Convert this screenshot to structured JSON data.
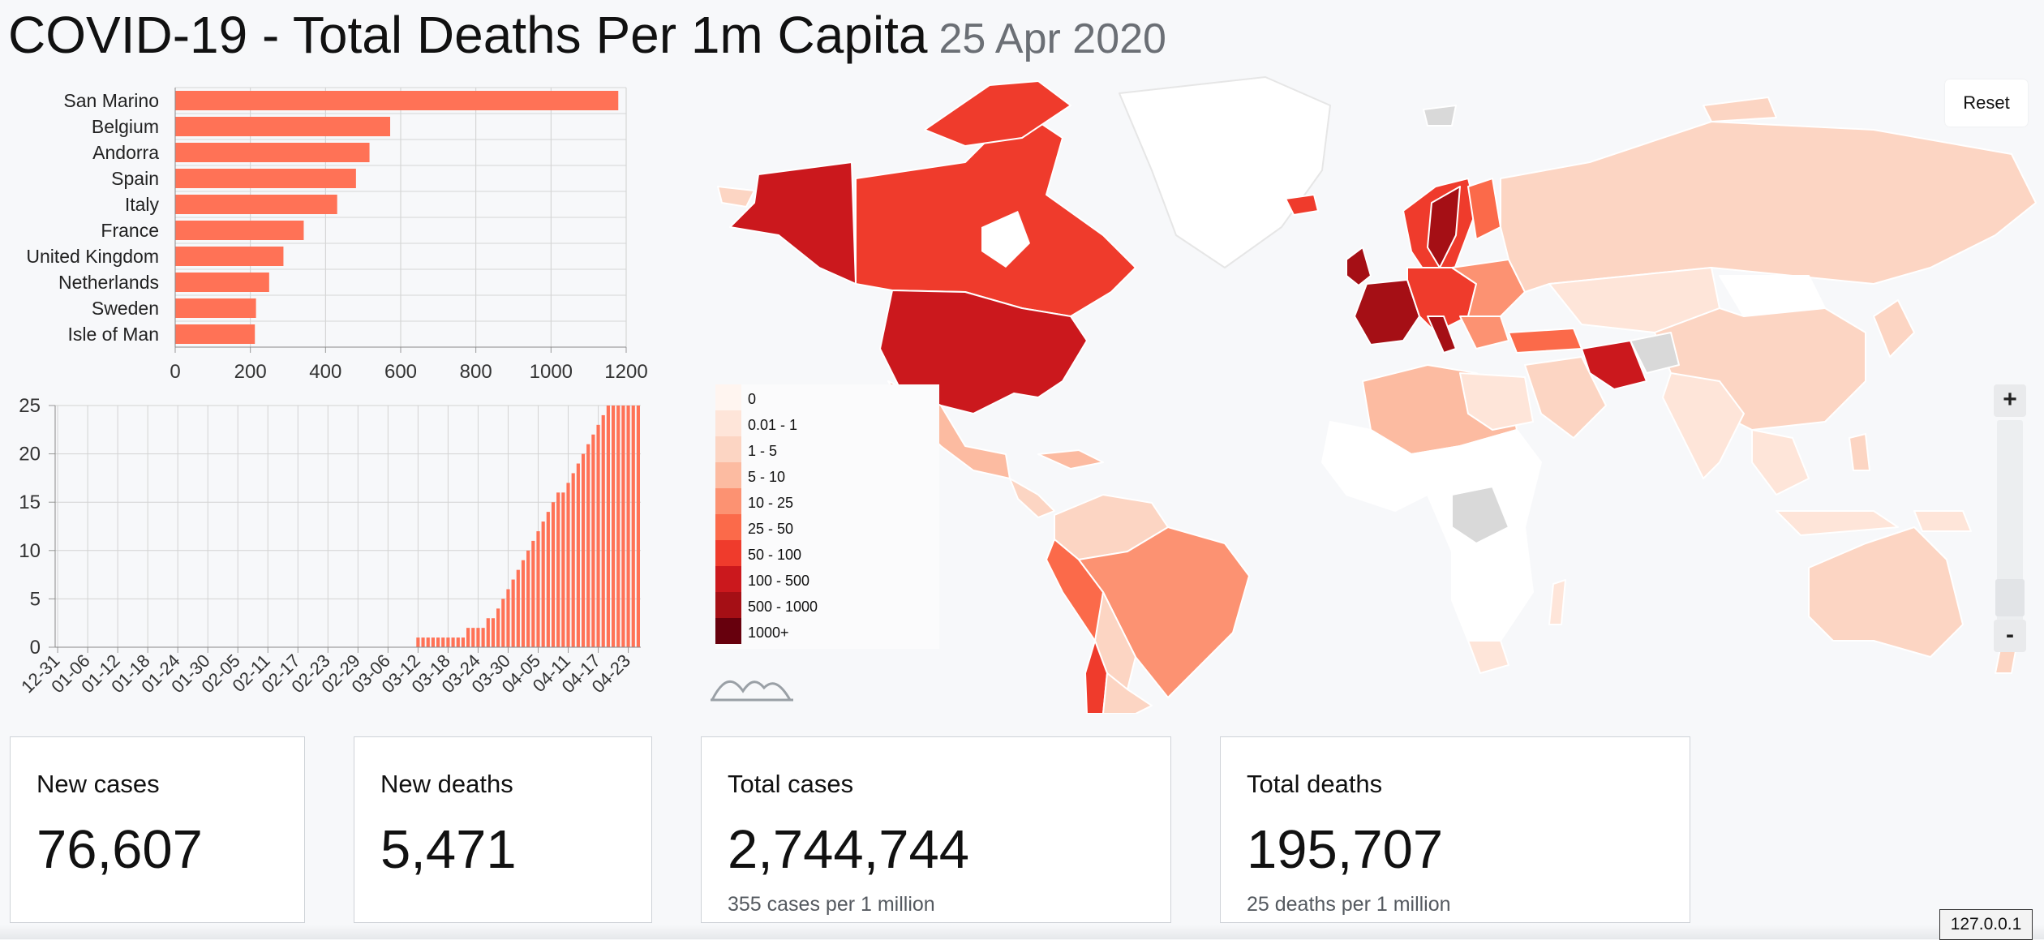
{
  "page": {
    "title": "COVID-19 - Total Deaths Per 1m Capita",
    "date": "25 Apr 2020"
  },
  "bar_chart": {
    "chart_data": {
      "type": "bar",
      "orientation": "horizontal",
      "categories": [
        "San Marino",
        "Belgium",
        "Andorra",
        "Spain",
        "Italy",
        "France",
        "United Kingdom",
        "Netherlands",
        "Sweden",
        "Isle of Man"
      ],
      "values": [
        1179,
        572,
        517,
        481,
        431,
        342,
        288,
        250,
        215,
        212
      ],
      "xlim": [
        0,
        1200
      ],
      "xticks": [
        "0",
        "200",
        "400",
        "600",
        "800",
        "1000",
        "1200"
      ],
      "color": "#ff7256",
      "grid": true
    }
  },
  "time_chart": {
    "chart_data": {
      "type": "bar",
      "xtick_labels": [
        "12-31",
        "01-06",
        "01-12",
        "01-18",
        "01-24",
        "01-30",
        "02-05",
        "02-11",
        "02-17",
        "02-23",
        "02-29",
        "03-06",
        "03-12",
        "03-18",
        "03-24",
        "03-30",
        "04-05",
        "04-11",
        "04-17",
        "04-23"
      ],
      "start": "2019-12-31",
      "end": "2020-04-25",
      "values_from": "2020-03-12",
      "values": [
        1,
        1,
        1,
        1,
        1,
        1,
        1,
        1,
        1,
        1,
        2,
        2,
        2,
        2,
        3,
        3,
        4,
        5,
        6,
        7,
        8,
        9,
        10,
        11,
        12,
        13,
        14,
        15,
        16,
        16,
        17,
        18,
        19,
        20,
        21,
        22,
        23,
        24,
        25,
        25,
        25,
        25,
        25,
        25,
        25
      ],
      "ylim": [
        0,
        25
      ],
      "yticks": [
        "0",
        "5",
        "10",
        "15",
        "20",
        "25"
      ],
      "color": "#ff7256",
      "grid": true
    }
  },
  "legend": {
    "items": [
      {
        "label": "0",
        "color": "#fff5f0"
      },
      {
        "label": "0.01 - 1",
        "color": "#fee5d9"
      },
      {
        "label": "1 - 5",
        "color": "#fcd5c3"
      },
      {
        "label": "5 - 10",
        "color": "#fcbba1"
      },
      {
        "label": "10 - 25",
        "color": "#fc9272"
      },
      {
        "label": "25 - 50",
        "color": "#fb6a4a"
      },
      {
        "label": "50 - 100",
        "color": "#ef3b2c"
      },
      {
        "label": "100 - 500",
        "color": "#cb181d"
      },
      {
        "label": "500 - 1000",
        "color": "#a50f15"
      },
      {
        "label": "1000+",
        "color": "#67000d"
      }
    ]
  },
  "map_controls": {
    "reset_label": "Reset",
    "zoom_in": "+",
    "zoom_out": "-"
  },
  "stats": {
    "new_cases": {
      "label": "New cases",
      "value": "76,607"
    },
    "new_deaths": {
      "label": "New deaths",
      "value": "5,471"
    },
    "total_cases": {
      "label": "Total cases",
      "value": "2,744,744",
      "sub": "355 cases per 1 million"
    },
    "total_deaths": {
      "label": "Total deaths",
      "value": "195,707",
      "sub": "25 deaths per 1 million"
    }
  },
  "status": {
    "ip": "127.0.0.1"
  },
  "icons": {
    "graph_toggle": "sparkline-icon"
  }
}
